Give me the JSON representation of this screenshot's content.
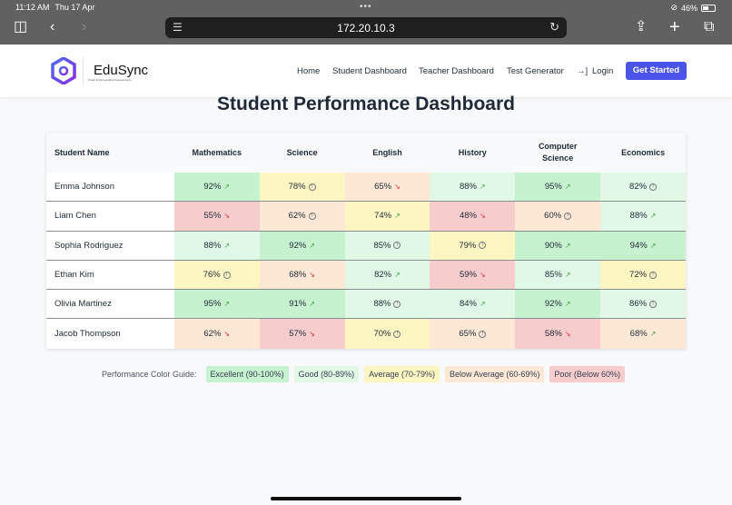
{
  "status_bar": {
    "time": "11:12 AM",
    "date": "Thu 17 Apr",
    "battery": "46%"
  },
  "browser": {
    "url": "172.20.10.3"
  },
  "nav": {
    "brand": "EduSync",
    "tagline": "Smart & Personalized Assessments",
    "links": [
      "Home",
      "Student Dashboard",
      "Teacher Dashboard",
      "Test Generator",
      "Login"
    ],
    "cta": "Get Started"
  },
  "page_title": "Student Performance Dashboard",
  "table": {
    "headers": [
      "Student Name",
      "Mathematics",
      "Science",
      "English",
      "History",
      "Computer Science",
      "Economics"
    ],
    "rows": [
      {
        "name": "Emma Johnson",
        "scores": [
          [
            "92%",
            "up"
          ],
          [
            "78%",
            "info"
          ],
          [
            "65%",
            "down"
          ],
          [
            "88%",
            "up"
          ],
          [
            "95%",
            "up"
          ],
          [
            "82%",
            "info"
          ]
        ]
      },
      {
        "name": "Liam Chen",
        "scores": [
          [
            "55%",
            "down"
          ],
          [
            "62%",
            "info"
          ],
          [
            "74%",
            "up"
          ],
          [
            "48%",
            "down"
          ],
          [
            "60%",
            "info"
          ],
          [
            "88%",
            "up"
          ]
        ]
      },
      {
        "name": "Sophia Rodriguez",
        "scores": [
          [
            "88%",
            "up"
          ],
          [
            "92%",
            "up"
          ],
          [
            "85%",
            "info"
          ],
          [
            "79%",
            "info"
          ],
          [
            "90%",
            "up"
          ],
          [
            "94%",
            "up"
          ]
        ]
      },
      {
        "name": "Ethan Kim",
        "scores": [
          [
            "76%",
            "info"
          ],
          [
            "68%",
            "down"
          ],
          [
            "82%",
            "up"
          ],
          [
            "59%",
            "down"
          ],
          [
            "85%",
            "up"
          ],
          [
            "72%",
            "info"
          ]
        ]
      },
      {
        "name": "Olivia Martinez",
        "scores": [
          [
            "95%",
            "up"
          ],
          [
            "91%",
            "up"
          ],
          [
            "88%",
            "info"
          ],
          [
            "84%",
            "up"
          ],
          [
            "92%",
            "up"
          ],
          [
            "86%",
            "info"
          ]
        ]
      },
      {
        "name": "Jacob Thompson",
        "scores": [
          [
            "62%",
            "down"
          ],
          [
            "57%",
            "down"
          ],
          [
            "70%",
            "info"
          ],
          [
            "65%",
            "info"
          ],
          [
            "58%",
            "down"
          ],
          [
            "68%",
            "up"
          ]
        ]
      }
    ]
  },
  "legend": {
    "label": "Performance Color Guide:",
    "items": [
      {
        "label": "Excellent (90-100%)",
        "color": "#c6f2cf"
      },
      {
        "label": "Good (80-89%)",
        "color": "#e2f8e6"
      },
      {
        "label": "Average (70-79%)",
        "color": "#fdf6c3"
      },
      {
        "label": "Below Average (60-69%)",
        "color": "#fde8d6"
      },
      {
        "label": "Poor (Below 60%)",
        "color": "#f7cccc"
      }
    ]
  }
}
